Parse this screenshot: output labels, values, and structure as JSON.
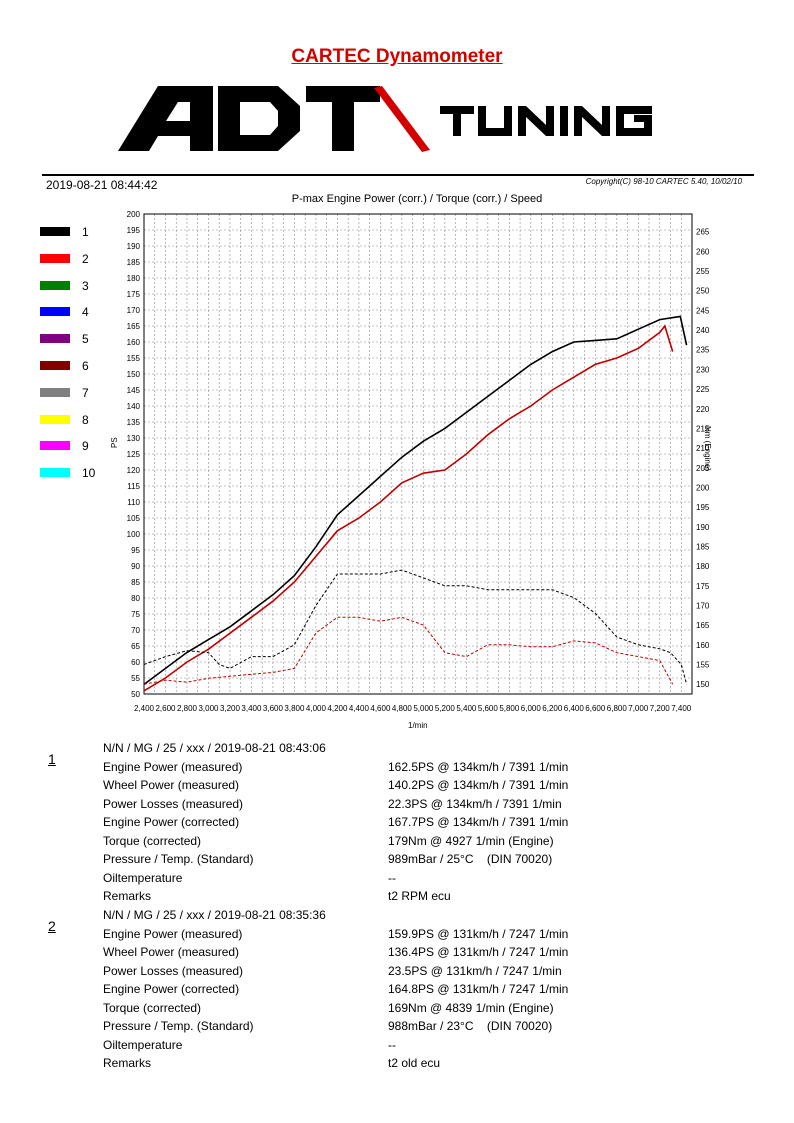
{
  "header": {
    "title": "CARTEC Dynamometer",
    "logo_left": "ADT",
    "logo_right": "TUNING",
    "date": "2019-08-21 08:44:42",
    "copyright": "Copyright(C) 98-10 CARTEC 5.40, 10/02/10"
  },
  "legend": [
    {
      "label": "1",
      "color": "#000000"
    },
    {
      "label": "2",
      "color": "#ff0000"
    },
    {
      "label": "3",
      "color": "#008000"
    },
    {
      "label": "4",
      "color": "#0000ff"
    },
    {
      "label": "5",
      "color": "#800080"
    },
    {
      "label": "6",
      "color": "#800000"
    },
    {
      "label": "7",
      "color": "#808080"
    },
    {
      "label": "8",
      "color": "#ffff00"
    },
    {
      "label": "9",
      "color": "#ff00ff"
    },
    {
      "label": "10",
      "color": "#00ffff"
    }
  ],
  "chart_data": {
    "type": "line",
    "title": "P-max Engine Power (corr.) / Torque (corr.) / Speed",
    "xlabel": "1/min",
    "ylabel": "PS",
    "ylabel_right": "Nm (Engine)",
    "xlim": [
      2400,
      7500
    ],
    "ylim": [
      50,
      200
    ],
    "ylim_right": [
      147.5,
      269.5
    ],
    "grid": true,
    "x_ticks": [
      "2,400",
      "2,600",
      "2,800",
      "3,000",
      "3,200",
      "3,400",
      "3,600",
      "3,800",
      "4,000",
      "4,200",
      "4,400",
      "4,600",
      "4,800",
      "5,000",
      "5,200",
      "5,400",
      "5,600",
      "5,800",
      "6,000",
      "6,200",
      "6,400",
      "6,600",
      "6,800",
      "7,000",
      "7,200",
      "7,400"
    ],
    "y_ticks": [
      50,
      55,
      60,
      65,
      70,
      75,
      80,
      85,
      90,
      95,
      100,
      105,
      110,
      115,
      120,
      125,
      130,
      135,
      140,
      145,
      150,
      155,
      160,
      165,
      170,
      175,
      180,
      185,
      190,
      195,
      200
    ],
    "y_ticks_right": [
      150,
      155,
      160,
      165,
      170,
      175,
      180,
      185,
      190,
      195,
      200,
      205,
      210,
      215,
      220,
      225,
      230,
      235,
      240,
      245,
      250,
      255,
      260,
      265
    ],
    "series": [
      {
        "name": "1",
        "kind": "power",
        "color": "#000000",
        "x": [
          2400,
          2600,
          2800,
          3000,
          3200,
          3400,
          3600,
          3800,
          4000,
          4200,
          4400,
          4600,
          4800,
          5000,
          5200,
          5400,
          5600,
          5800,
          6000,
          6200,
          6400,
          6600,
          6800,
          7000,
          7200,
          7391,
          7450
        ],
        "y": [
          53,
          58,
          63,
          67,
          71,
          76,
          81,
          87,
          96,
          106,
          112,
          118,
          124,
          129,
          133,
          138,
          143,
          148,
          153,
          157,
          160,
          160.5,
          161,
          164,
          167,
          168,
          159
        ]
      },
      {
        "name": "2",
        "kind": "power",
        "color": "#c00000",
        "x": [
          2400,
          2600,
          2800,
          3000,
          3200,
          3400,
          3600,
          3800,
          4000,
          4200,
          4400,
          4600,
          4800,
          5000,
          5200,
          5400,
          5600,
          5800,
          6000,
          6200,
          6400,
          6600,
          6800,
          7000,
          7200,
          7247,
          7320
        ],
        "y": [
          51,
          55,
          60,
          64,
          69,
          74,
          79,
          85,
          93,
          101,
          105,
          110,
          116,
          119,
          120,
          125,
          131,
          136,
          140,
          145,
          149,
          153,
          155,
          158,
          163,
          165,
          157
        ]
      },
      {
        "name": "1",
        "kind": "torque",
        "color": "#000000",
        "x": [
          2400,
          2600,
          2800,
          3000,
          3100,
          3200,
          3400,
          3600,
          3800,
          4000,
          4200,
          4400,
          4600,
          4800,
          5000,
          5200,
          5400,
          5600,
          5800,
          6000,
          6200,
          6400,
          6600,
          6800,
          7000,
          7200,
          7300,
          7400,
          7450
        ],
        "y": [
          155,
          157,
          158.5,
          158,
          155,
          154,
          157,
          157,
          160,
          170,
          178,
          178,
          178,
          179,
          177,
          175,
          175,
          174,
          174,
          174,
          174,
          172,
          168,
          162,
          160,
          159,
          158,
          155,
          150
        ]
      },
      {
        "name": "2",
        "kind": "torque",
        "color": "#c00000",
        "x": [
          2400,
          2600,
          2800,
          3000,
          3200,
          3400,
          3600,
          3800,
          4000,
          4200,
          4400,
          4600,
          4800,
          5000,
          5200,
          5400,
          5600,
          5800,
          6000,
          6200,
          6400,
          6600,
          6800,
          7000,
          7200,
          7320
        ],
        "y": [
          150,
          151,
          150.5,
          151.5,
          152,
          152.5,
          153,
          154,
          163,
          167,
          167,
          166,
          167,
          165,
          158,
          157,
          160,
          160,
          159.5,
          159.5,
          161,
          160.5,
          158,
          157,
          156,
          150
        ]
      }
    ]
  },
  "runs": [
    {
      "number": "1",
      "header": "N/N / MG / 25 / xxx / 2019-08-21 08:43:06",
      "rows": [
        {
          "label": "Engine Power (measured)",
          "value": "162.5PS @ 134km/h / 7391 1/min"
        },
        {
          "label": "Wheel Power (measured)",
          "value": "140.2PS @ 134km/h / 7391 1/min"
        },
        {
          "label": "Power Losses (measured)",
          "value": "22.3PS @ 134km/h / 7391 1/min"
        },
        {
          "label": "Engine Power (corrected)",
          "value": "167.7PS @ 134km/h / 7391 1/min"
        },
        {
          "label": "Torque (corrected)",
          "value": "179Nm @ 4927 1/min (Engine)"
        },
        {
          "label": "Pressure / Temp. (Standard)",
          "value": "989mBar / 25°C    (DIN 70020)"
        },
        {
          "label": "Oiltemperature",
          "value": "--"
        },
        {
          "label": "Remarks",
          "value": "t2 RPM ecu"
        }
      ]
    },
    {
      "number": "2",
      "header": "N/N / MG / 25 / xxx / 2019-08-21 08:35:36",
      "rows": [
        {
          "label": "Engine Power (measured)",
          "value": "159.9PS @ 131km/h / 7247 1/min"
        },
        {
          "label": "Wheel Power (measured)",
          "value": "136.4PS @ 131km/h / 7247 1/min"
        },
        {
          "label": "Power Losses (measured)",
          "value": "23.5PS @ 131km/h / 7247 1/min"
        },
        {
          "label": "Engine Power (corrected)",
          "value": "164.8PS @ 131km/h / 7247 1/min"
        },
        {
          "label": "Torque (corrected)",
          "value": "169Nm @ 4839 1/min (Engine)"
        },
        {
          "label": "Pressure / Temp. (Standard)",
          "value": "988mBar / 23°C    (DIN 70020)"
        },
        {
          "label": "Oiltemperature",
          "value": "--"
        },
        {
          "label": "Remarks",
          "value": "t2 old ecu"
        }
      ]
    }
  ]
}
